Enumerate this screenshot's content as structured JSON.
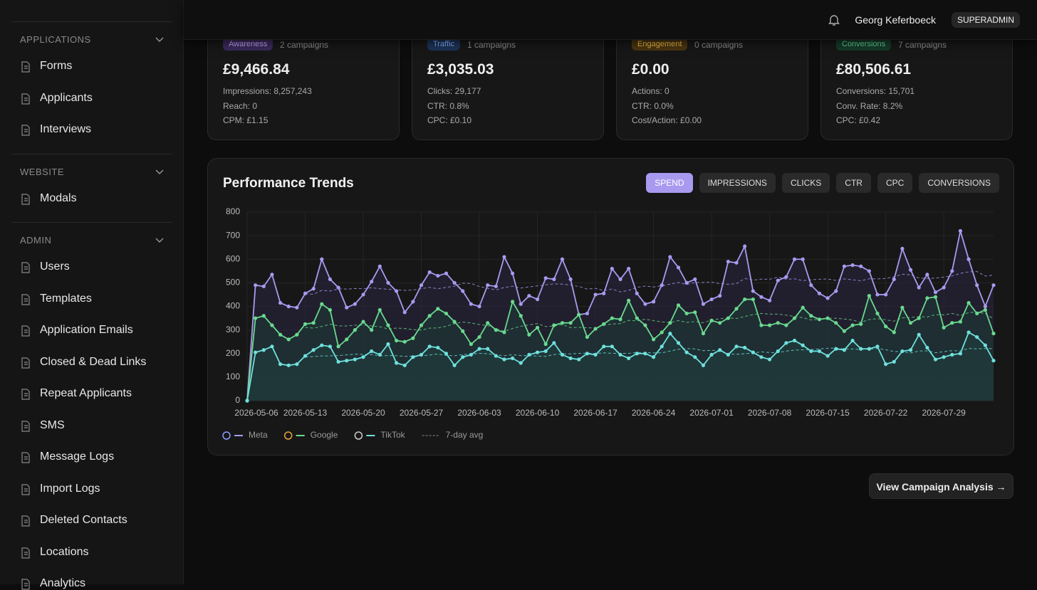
{
  "sidebar": {
    "sections": [
      {
        "title": "APPLICATIONS",
        "items": [
          "Forms",
          "Applicants",
          "Interviews"
        ]
      },
      {
        "title": "WEBSITE",
        "items": [
          "Modals"
        ]
      },
      {
        "title": "ADMIN",
        "items": [
          "Users",
          "Templates",
          "Application Emails",
          "Closed & Dead Links",
          "Repeat Applicants",
          "SMS",
          "Message Logs",
          "Import Logs",
          "Deleted Contacts",
          "Locations",
          "Analytics"
        ]
      }
    ]
  },
  "header": {
    "user": "Georg Keferboeck",
    "role": "SUPERADMIN"
  },
  "cards": [
    {
      "badge": "Awareness",
      "campaigns": "2 campaigns",
      "amount": "£9,466.84",
      "stats": [
        "Impressions: 8,257,243",
        "Reach: 0",
        "CPM: £1.15"
      ]
    },
    {
      "badge": "Traffic",
      "campaigns": "1 campaigns",
      "amount": "£3,035.03",
      "stats": [
        "Clicks: 29,177",
        "CTR: 0.8%",
        "CPC: £0.10"
      ]
    },
    {
      "badge": "Engagement",
      "campaigns": "0 campaigns",
      "amount": "£0.00",
      "stats": [
        "Actions: 0",
        "CTR: 0.0%",
        "Cost/Action: £0.00"
      ]
    },
    {
      "badge": "Conversions",
      "campaigns": "7 campaigns",
      "amount": "£80,506.61",
      "stats": [
        "Conversions: 15,701",
        "Conv. Rate: 8.2%",
        "CPC: £0.42"
      ]
    }
  ],
  "tabs": {
    "items": [
      "SPEND",
      "IMPRESSIONS",
      "CLICKS",
      "CTR",
      "CPC",
      "CONVERSIONS"
    ],
    "active": 0
  },
  "chart_data": {
    "type": "line",
    "title": "Performance Trends",
    "x": [
      "2026-05-06",
      "2026-05-07",
      "2026-05-08",
      "2026-05-09",
      "2026-05-10",
      "2026-05-11",
      "2026-05-12",
      "2026-05-13",
      "2026-05-14",
      "2026-05-15",
      "2026-05-16",
      "2026-05-17",
      "2026-05-18",
      "2026-05-19",
      "2026-05-20",
      "2026-05-21",
      "2026-05-22",
      "2026-05-23",
      "2026-05-24",
      "2026-05-25",
      "2026-05-26",
      "2026-05-27",
      "2026-05-28",
      "2026-05-29",
      "2026-05-30",
      "2026-05-31",
      "2026-06-01",
      "2026-06-02",
      "2026-06-03",
      "2026-06-04",
      "2026-06-05",
      "2026-06-06",
      "2026-06-07",
      "2026-06-08",
      "2026-06-09",
      "2026-06-10",
      "2026-06-11",
      "2026-06-12",
      "2026-06-13",
      "2026-06-14",
      "2026-06-15",
      "2026-06-16",
      "2026-06-17",
      "2026-06-18",
      "2026-06-19",
      "2026-06-20",
      "2026-06-21",
      "2026-06-22",
      "2026-06-23",
      "2026-06-24",
      "2026-06-25",
      "2026-06-26",
      "2026-06-27",
      "2026-06-28",
      "2026-06-29",
      "2026-06-30",
      "2026-07-01",
      "2026-07-02",
      "2026-07-03",
      "2026-07-04",
      "2026-07-05",
      "2026-07-06",
      "2026-07-07",
      "2026-07-08",
      "2026-07-09",
      "2026-07-10",
      "2026-07-11",
      "2026-07-12",
      "2026-07-13",
      "2026-07-14",
      "2026-07-15",
      "2026-07-16",
      "2026-07-17",
      "2026-07-18",
      "2026-07-19",
      "2026-07-20",
      "2026-07-21",
      "2026-07-22",
      "2026-07-23",
      "2026-07-24",
      "2026-07-25",
      "2026-07-26",
      "2026-07-27",
      "2026-07-28",
      "2026-07-29",
      "2026-07-30",
      "2026-07-31",
      "2026-08-01",
      "2026-08-02",
      "2026-08-03",
      "2026-08-04"
    ],
    "series": [
      {
        "name": "Meta",
        "color": "#a99af0",
        "values": [
          0,
          490,
          485,
          535,
          415,
          400,
          395,
          455,
          475,
          600,
          515,
          480,
          395,
          410,
          450,
          505,
          570,
          500,
          465,
          375,
          420,
          490,
          545,
          530,
          540,
          500,
          465,
          410,
          400,
          490,
          485,
          610,
          540,
          410,
          445,
          430,
          520,
          515,
          600,
          515,
          365,
          370,
          450,
          455,
          560,
          515,
          560,
          455,
          410,
          420,
          490,
          610,
          565,
          500,
          515,
          410,
          430,
          445,
          590,
          585,
          655,
          465,
          440,
          425,
          510,
          525,
          600,
          600,
          490,
          455,
          435,
          465,
          570,
          575,
          570,
          550,
          450,
          450,
          515,
          645,
          555,
          480,
          535,
          460,
          480,
          550,
          720,
          600,
          490,
          400,
          490
        ]
      },
      {
        "name": "Google",
        "color": "#6ad98f",
        "values": [
          0,
          350,
          360,
          320,
          280,
          260,
          280,
          325,
          330,
          410,
          385,
          230,
          260,
          300,
          335,
          300,
          385,
          320,
          255,
          250,
          265,
          320,
          360,
          390,
          370,
          335,
          295,
          240,
          270,
          330,
          300,
          290,
          420,
          360,
          280,
          310,
          240,
          320,
          330,
          330,
          365,
          270,
          305,
          325,
          350,
          345,
          425,
          350,
          320,
          260,
          290,
          330,
          405,
          370,
          375,
          285,
          340,
          330,
          350,
          390,
          430,
          430,
          320,
          320,
          330,
          320,
          350,
          395,
          360,
          345,
          350,
          330,
          295,
          320,
          325,
          445,
          370,
          315,
          290,
          395,
          330,
          350,
          435,
          440,
          310,
          330,
          335,
          415,
          370,
          385,
          285
        ]
      },
      {
        "name": "TikTok",
        "color": "#6fe0de",
        "values": [
          0,
          205,
          215,
          230,
          155,
          150,
          155,
          190,
          215,
          235,
          230,
          165,
          170,
          175,
          185,
          210,
          195,
          240,
          160,
          150,
          185,
          195,
          230,
          225,
          200,
          150,
          185,
          195,
          220,
          220,
          190,
          175,
          180,
          160,
          195,
          205,
          210,
          245,
          195,
          180,
          175,
          200,
          195,
          230,
          230,
          195,
          180,
          200,
          200,
          185,
          230,
          285,
          245,
          205,
          185,
          150,
          195,
          215,
          195,
          230,
          225,
          205,
          185,
          175,
          210,
          245,
          255,
          235,
          210,
          210,
          190,
          220,
          215,
          255,
          220,
          220,
          230,
          155,
          165,
          210,
          215,
          280,
          225,
          175,
          185,
          195,
          200,
          290,
          270,
          235,
          170
        ]
      }
    ],
    "ylim": [
      0,
      800
    ],
    "yticks": [
      0,
      100,
      200,
      300,
      400,
      500,
      600,
      700,
      800
    ],
    "xticks": [
      "2026-05-06",
      "2026-05-13",
      "2026-05-20",
      "2026-05-27",
      "2026-06-03",
      "2026-06-10",
      "2026-06-17",
      "2026-06-24",
      "2026-07-01",
      "2026-07-08",
      "2026-07-15",
      "2026-07-22",
      "2026-07-29"
    ],
    "grid": true,
    "avg_label": "7-day avg"
  },
  "footer": {
    "button": "View Campaign Analysis →"
  }
}
